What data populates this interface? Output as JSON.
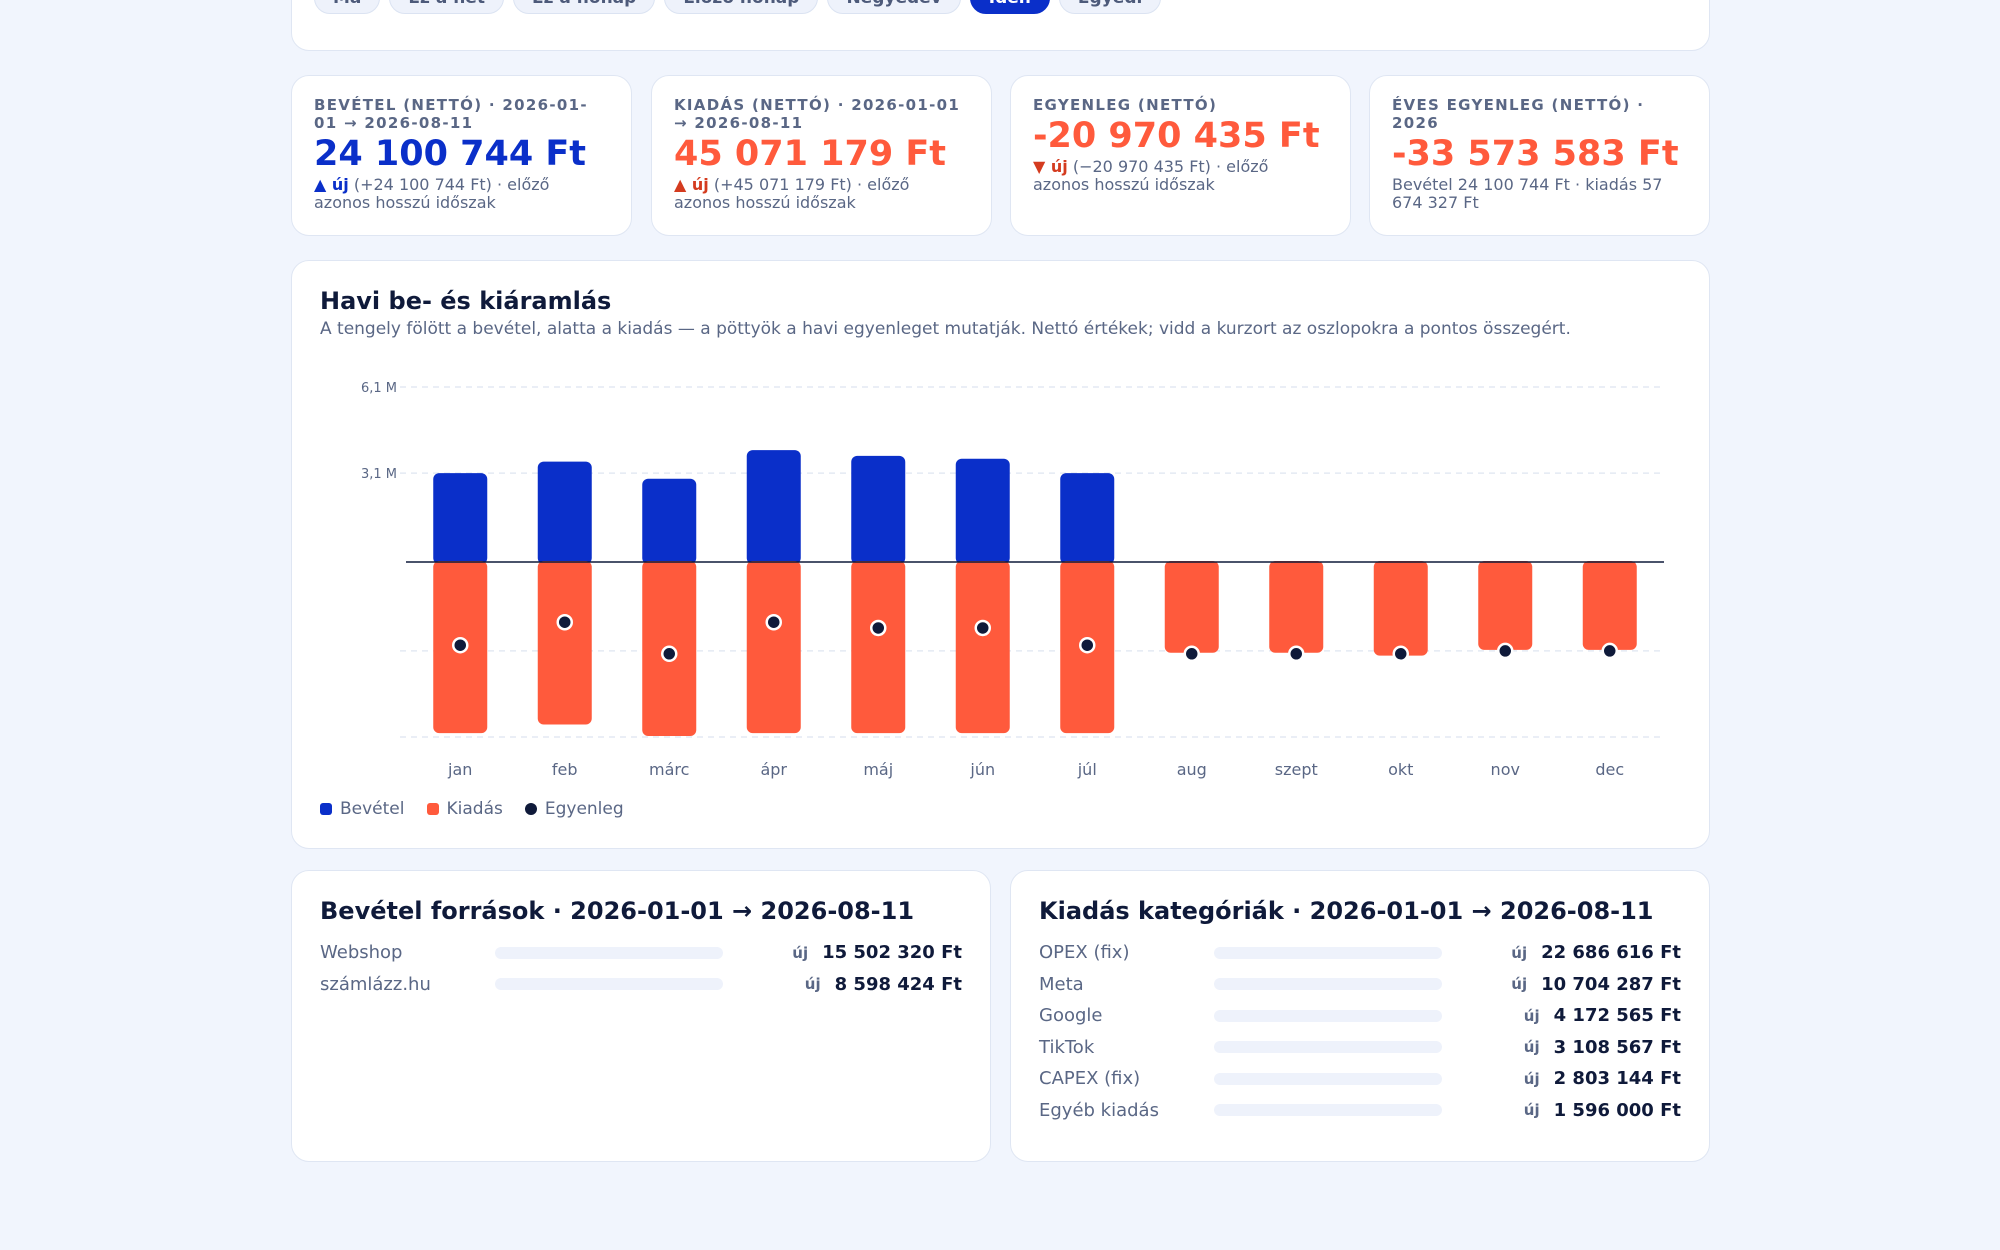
{
  "period": {
    "chips": [
      {
        "label": "Ma",
        "active": false
      },
      {
        "label": "Ez a hét",
        "active": false
      },
      {
        "label": "Ez a hónap",
        "active": false
      },
      {
        "label": "Előző hónap",
        "active": false
      },
      {
        "label": "Negyedév",
        "active": false
      },
      {
        "label": "Idén",
        "active": true
      },
      {
        "label": "Egyedi",
        "active": false
      }
    ]
  },
  "kpis": {
    "income": {
      "label": "BEVÉTEL (NETTÓ) · 2026-01-01 → 2026-08-11",
      "value": "24 100 744 Ft",
      "badge": "▲ új",
      "note": "(+24 100 744 Ft) · előző azonos hosszú időszak"
    },
    "expense": {
      "label": "KIADÁS (NETTÓ) · 2026-01-01 → 2026-08-11",
      "value": "45 071 179 Ft",
      "badge": "▲ új",
      "note": "(+45 071 179 Ft) · előző azonos hosszú időszak"
    },
    "balance": {
      "label": "EGYENLEG (NETTÓ)",
      "value": "-20 970 435 Ft",
      "badge": "▼ új",
      "note": "(−20 970 435 Ft) · előző azonos hosszú időszak"
    },
    "annual": {
      "label": "ÉVES EGYENLEG (NETTÓ) · 2026",
      "value": "-33 573 583 Ft",
      "note": "Bevétel 24 100 744 Ft · kiadás 57 674 327 Ft"
    }
  },
  "chart": {
    "title": "Havi be- és kiáramlás",
    "subtitle": "A tengely fölött a bevétel, alatta a kiadás — a pöttyök a havi egyenleget mutatják. Nettó értékek; vidd a kurzort az oszlopokra a pontos összegért.",
    "legend": [
      {
        "label": "Bevétel",
        "color": "#0a2fc9"
      },
      {
        "label": "Kiadás",
        "color": "#ff5a3c"
      },
      {
        "label": "Egyenleg",
        "color": "#0f1a3a"
      }
    ]
  },
  "chart_data": {
    "type": "bar",
    "categories": [
      "jan",
      "feb",
      "márc",
      "ápr",
      "máj",
      "jún",
      "júl",
      "aug",
      "szept",
      "okt",
      "nov",
      "dec"
    ],
    "series": [
      {
        "name": "Bevétel",
        "values": [
          3.1,
          3.5,
          2.9,
          3.9,
          3.7,
          3.6,
          3.1,
          0,
          0,
          0,
          0,
          0
        ]
      },
      {
        "name": "Kiadás",
        "values": [
          -6.0,
          -5.7,
          -6.1,
          -6.0,
          -6.0,
          -6.0,
          -6.0,
          -3.2,
          -3.2,
          -3.3,
          -3.1,
          -3.1
        ]
      },
      {
        "name": "Egyenleg",
        "values": [
          -2.9,
          -2.1,
          -3.2,
          -2.1,
          -2.3,
          -2.3,
          -2.9,
          -3.2,
          -3.2,
          -3.2,
          -3.1,
          -3.1
        ]
      }
    ],
    "yticks": [
      {
        "value": 6.1,
        "label": "6,1 M"
      },
      {
        "value": 3.1,
        "label": "3,1 M"
      }
    ],
    "ylim": [
      -6.1,
      6.1
    ],
    "grid": true,
    "legend_position": "bottom-left"
  },
  "income_sources": {
    "title": "Bevétel források · 2026-01-01 → 2026-08-11",
    "rows": [
      {
        "label": "Webshop",
        "badge": "új",
        "value": "15 502 320 Ft",
        "fill": 0
      },
      {
        "label": "számlázz.hu",
        "badge": "új",
        "value": "8 598 424 Ft",
        "fill": 0
      }
    ]
  },
  "expense_categories": {
    "title": "Kiadás kategóriák · 2026-01-01 → 2026-08-11",
    "rows": [
      {
        "label": "OPEX (fix)",
        "badge": "új",
        "value": "22 686 616 Ft",
        "fill": 0
      },
      {
        "label": "Meta",
        "badge": "új",
        "value": "10 704 287 Ft",
        "fill": 0
      },
      {
        "label": "Google",
        "badge": "új",
        "value": "4 172 565 Ft",
        "fill": 0
      },
      {
        "label": "TikTok",
        "badge": "új",
        "value": "3 108 567 Ft",
        "fill": 0
      },
      {
        "label": "CAPEX (fix)",
        "badge": "új",
        "value": "2 803 144 Ft",
        "fill": 0
      },
      {
        "label": "Egyéb kiadás",
        "badge": "új",
        "value": "1 596 000 Ft",
        "fill": 0
      }
    ]
  }
}
